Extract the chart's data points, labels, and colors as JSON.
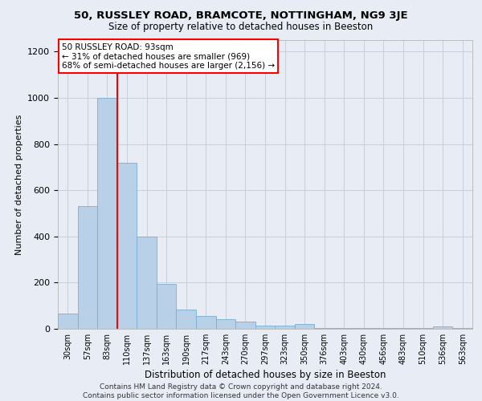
{
  "title1": "50, RUSSLEY ROAD, BRAMCOTE, NOTTINGHAM, NG9 3JE",
  "title2": "Size of property relative to detached houses in Beeston",
  "xlabel": "Distribution of detached houses by size in Beeston",
  "ylabel": "Number of detached properties",
  "annotation_title": "50 RUSSLEY ROAD: 93sqm",
  "annotation_line1": "← 31% of detached houses are smaller (969)",
  "annotation_line2": "68% of semi-detached houses are larger (2,156) →",
  "footer1": "Contains HM Land Registry data © Crown copyright and database right 2024.",
  "footer2": "Contains public sector information licensed under the Open Government Licence v3.0.",
  "categories": [
    "30sqm",
    "57sqm",
    "83sqm",
    "110sqm",
    "137sqm",
    "163sqm",
    "190sqm",
    "217sqm",
    "243sqm",
    "270sqm",
    "297sqm",
    "323sqm",
    "350sqm",
    "376sqm",
    "403sqm",
    "430sqm",
    "456sqm",
    "483sqm",
    "510sqm",
    "536sqm",
    "563sqm"
  ],
  "values": [
    65,
    530,
    1000,
    720,
    400,
    195,
    85,
    55,
    40,
    30,
    15,
    15,
    20,
    5,
    5,
    5,
    5,
    5,
    5,
    10,
    5
  ],
  "bar_color": "#b8d0e8",
  "bar_edge_color": "#7aadd4",
  "vline_color": "red",
  "background_color": "#e8edf5",
  "plot_bg_color": "#e8edf5",
  "annotation_box_color": "white",
  "annotation_box_edge": "red",
  "ylim": [
    0,
    1250
  ],
  "yticks": [
    0,
    200,
    400,
    600,
    800,
    1000,
    1200
  ],
  "grid_color": "#c8d0dc",
  "vline_position": 2.5
}
